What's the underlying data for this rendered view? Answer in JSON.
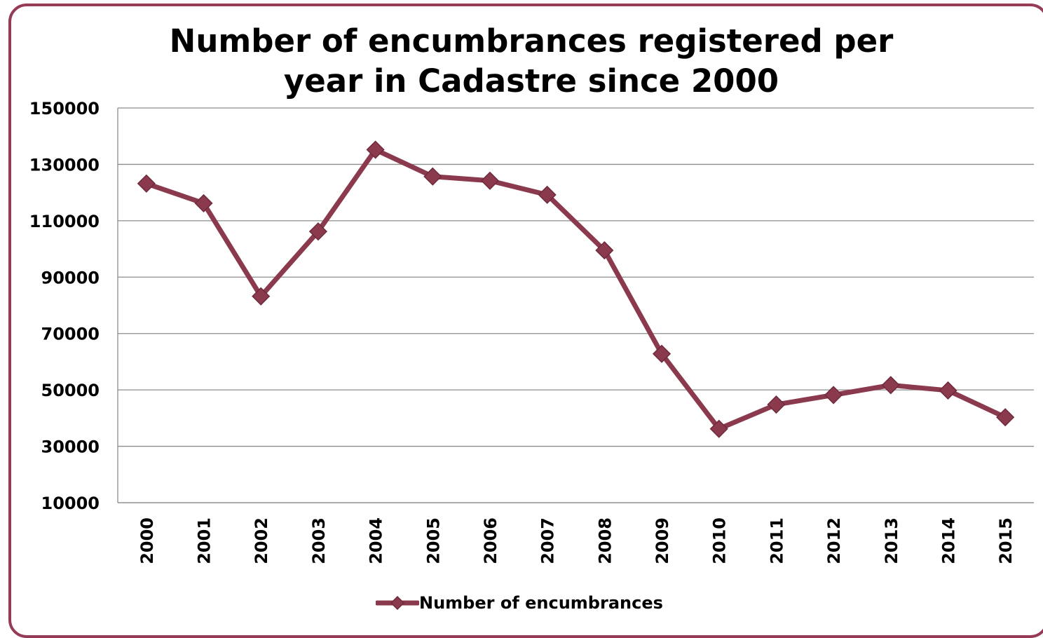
{
  "chart_data": {
    "type": "line",
    "title_lines": [
      "Number of encumbrances registered per",
      "year in Cadastre since 2000"
    ],
    "xlabel": "",
    "ylabel": "",
    "categories": [
      "2000",
      "2001",
      "2002",
      "2003",
      "2004",
      "2005",
      "2006",
      "2007",
      "2008",
      "2009",
      "2010",
      "2011",
      "2012",
      "2013",
      "2014",
      "2015"
    ],
    "series": [
      {
        "name": "Number of encumbrances",
        "color": "#8B3A4E",
        "marker": "diamond",
        "values": [
          123200,
          116200,
          83200,
          106200,
          135200,
          125700,
          124200,
          119200,
          99500,
          62800,
          36200,
          44800,
          48200,
          51700,
          49800,
          40300
        ]
      }
    ],
    "ylim": [
      10000,
      150000
    ],
    "yticks": [
      "150000",
      "130000",
      "110000",
      "90000",
      "70000",
      "50000",
      "30000",
      "10000"
    ],
    "grid": true,
    "legend_position": "bottom"
  }
}
